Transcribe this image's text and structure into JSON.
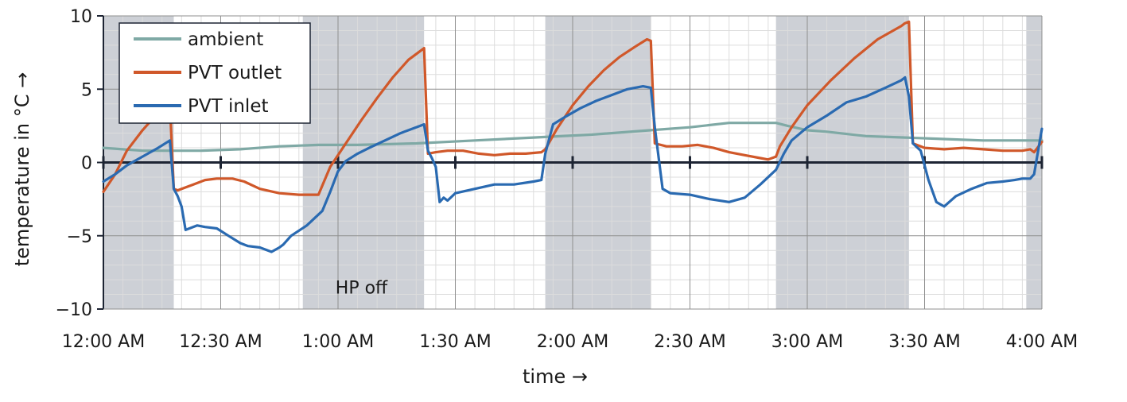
{
  "chart_data": {
    "type": "line",
    "xlabel": "time →",
    "ylabel": "temperature in °C →",
    "x_unit": "minutes after 12:00 AM",
    "xlim": [
      0,
      240
    ],
    "ylim": [
      -10,
      10
    ],
    "yticks": [
      -10,
      -5,
      0,
      5,
      10
    ],
    "xticks": [
      0,
      30,
      60,
      90,
      120,
      150,
      180,
      210,
      240
    ],
    "xtick_labels": [
      "12:00 AM",
      "12:30 AM",
      "1:00 AM",
      "1:30 AM",
      "2:00 AM",
      "2:30 AM",
      "3:00 AM",
      "3:30 AM",
      "4:00 AM"
    ],
    "grid": true,
    "legend_position": "top-left",
    "shaded_intervals": [
      [
        0,
        18
      ],
      [
        51,
        82
      ],
      [
        113,
        140
      ],
      [
        172,
        206
      ],
      [
        236,
        240
      ]
    ],
    "annotations": [
      {
        "text": "HP off",
        "x": 66,
        "y": -8.5
      }
    ],
    "series": [
      {
        "name": "ambient",
        "color": "#7fa9a5",
        "x": [
          0,
          5,
          10,
          18,
          25,
          35,
          45,
          55,
          65,
          80,
          95,
          110,
          125,
          140,
          150,
          160,
          165,
          172,
          175,
          180,
          185,
          195,
          205,
          215,
          225,
          240
        ],
        "y": [
          1.0,
          0.9,
          0.8,
          0.8,
          0.8,
          0.9,
          1.1,
          1.2,
          1.2,
          1.3,
          1.5,
          1.7,
          1.9,
          2.2,
          2.4,
          2.7,
          2.7,
          2.7,
          2.5,
          2.2,
          2.1,
          1.8,
          1.7,
          1.6,
          1.5,
          1.5
        ]
      },
      {
        "name": "PVT outlet",
        "color": "#d0582a",
        "x": [
          0,
          3,
          6,
          10,
          14,
          17,
          18,
          19,
          20,
          23,
          26,
          29,
          33,
          36,
          40,
          45,
          50,
          52,
          55,
          58,
          62,
          66,
          70,
          74,
          78,
          81,
          82,
          83,
          85,
          88,
          92,
          96,
          100,
          104,
          108,
          112,
          113,
          116,
          120,
          124,
          128,
          132,
          136,
          139,
          140,
          141,
          144,
          148,
          152,
          156,
          160,
          164,
          168,
          170,
          172,
          173,
          176,
          180,
          186,
          192,
          198,
          204,
          205,
          206,
          207,
          210,
          215,
          220,
          225,
          230,
          235,
          237,
          238,
          240
        ],
        "y": [
          -2.0,
          -0.8,
          0.8,
          2.2,
          3.4,
          4.0,
          -1.8,
          -1.9,
          -1.8,
          -1.5,
          -1.2,
          -1.1,
          -1.1,
          -1.3,
          -1.8,
          -2.1,
          -2.2,
          -2.2,
          -2.2,
          -0.3,
          1.3,
          2.9,
          4.4,
          5.8,
          7.0,
          7.6,
          7.8,
          0.6,
          0.7,
          0.8,
          0.8,
          0.6,
          0.5,
          0.6,
          0.6,
          0.7,
          0.9,
          2.3,
          3.9,
          5.2,
          6.3,
          7.2,
          7.9,
          8.4,
          8.3,
          1.3,
          1.1,
          1.1,
          1.2,
          1.0,
          0.7,
          0.5,
          0.3,
          0.2,
          0.4,
          1.1,
          2.4,
          3.9,
          5.6,
          7.1,
          8.4,
          9.3,
          9.5,
          9.6,
          1.3,
          1.0,
          0.9,
          1.0,
          0.9,
          0.8,
          0.8,
          0.9,
          0.7,
          1.4
        ]
      },
      {
        "name": "PVT inlet",
        "color": "#2a6ab1",
        "x": [
          0,
          3,
          6,
          10,
          14,
          17,
          18,
          19,
          20,
          21,
          22,
          24,
          26,
          29,
          32,
          35,
          37,
          40,
          43,
          45,
          46,
          48,
          52,
          56,
          58,
          60,
          62,
          65,
          68,
          72,
          76,
          80,
          81,
          82,
          83,
          84,
          85,
          86,
          87,
          88,
          90,
          95,
          100,
          105,
          110,
          112,
          113,
          115,
          118,
          122,
          126,
          130,
          134,
          138,
          140,
          141,
          143,
          145,
          150,
          155,
          160,
          164,
          168,
          172,
          174,
          176,
          180,
          185,
          190,
          195,
          200,
          204,
          205,
          206,
          207,
          209,
          211,
          213,
          215,
          218,
          222,
          226,
          230,
          233,
          235,
          237,
          238,
          240
        ],
        "y": [
          -1.3,
          -0.8,
          -0.2,
          0.4,
          1.0,
          1.5,
          -1.8,
          -2.3,
          -3.0,
          -4.6,
          -4.5,
          -4.3,
          -4.4,
          -4.5,
          -5.0,
          -5.5,
          -5.7,
          -5.8,
          -6.1,
          -5.8,
          -5.6,
          -5.0,
          -4.3,
          -3.3,
          -2.0,
          -0.6,
          0.1,
          0.6,
          1.0,
          1.5,
          2.0,
          2.4,
          2.5,
          2.6,
          0.8,
          0.3,
          -0.3,
          -2.7,
          -2.4,
          -2.6,
          -2.1,
          -1.8,
          -1.5,
          -1.5,
          -1.3,
          -1.2,
          0.6,
          2.6,
          3.1,
          3.7,
          4.2,
          4.6,
          5.0,
          5.2,
          5.1,
          2.4,
          -1.8,
          -2.1,
          -2.2,
          -2.5,
          -2.7,
          -2.4,
          -1.5,
          -0.5,
          0.6,
          1.5,
          2.4,
          3.2,
          4.1,
          4.5,
          5.1,
          5.6,
          5.8,
          4.5,
          1.3,
          0.8,
          -1.2,
          -2.7,
          -3.0,
          -2.3,
          -1.8,
          -1.4,
          -1.3,
          -1.2,
          -1.1,
          -1.1,
          -0.8,
          2.3
        ]
      }
    ]
  }
}
